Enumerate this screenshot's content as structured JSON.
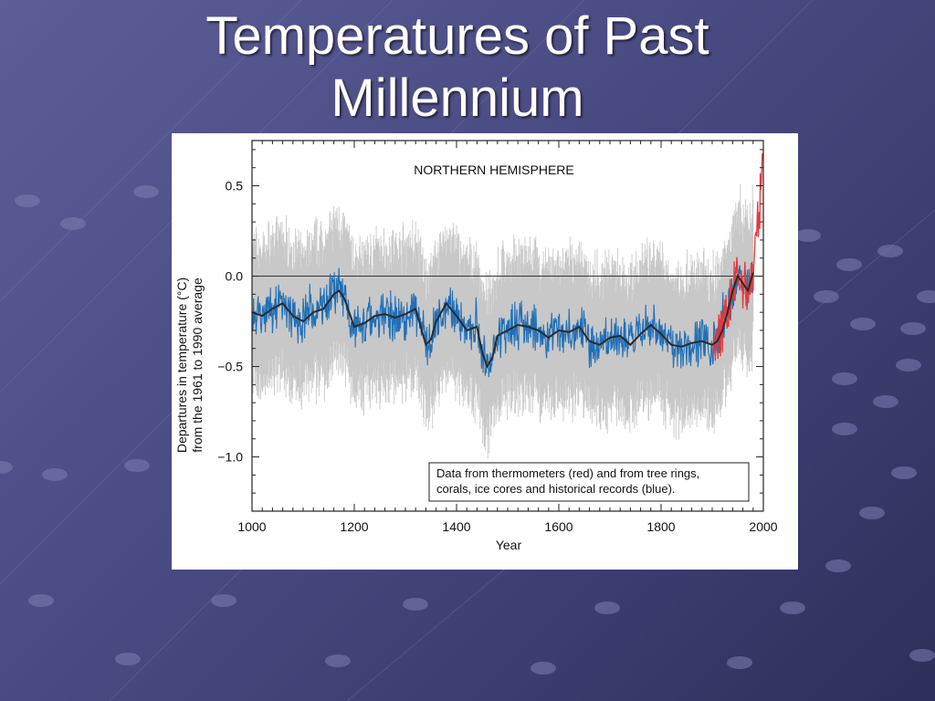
{
  "slide": {
    "title_line1": "Temperatures of Past",
    "title_line2": "Millennium"
  },
  "colors": {
    "background_top": "#5d5d97",
    "background_bottom": "#2f2f5b",
    "instrumental": "#e8383a",
    "proxy": "#1f6fb8",
    "smoothed": "#2a2a2a",
    "uncertainty": "#c8c8c8"
  },
  "chart_data": {
    "type": "line",
    "title": "NORTHERN HEMISPHERE",
    "xlabel": "Year",
    "ylabel_line1": "Departures in temperature (°C)",
    "ylabel_line2": "from the 1961 to 1990 average",
    "xlim": [
      1000,
      2000
    ],
    "ylim": [
      -1.3,
      0.75
    ],
    "x_ticks": [
      "1000",
      "1200",
      "1400",
      "1600",
      "1800",
      "2000"
    ],
    "y_ticks": [
      "0.5",
      "0.0",
      "−0.5",
      "−1.0"
    ],
    "annotation_line1": "Data from thermometers (red) and from tree rings,",
    "annotation_line2": "corals, ice cores and historical records (blue).",
    "series": [
      {
        "key": "proxy_smoothed",
        "x": [
          1000,
          1020,
          1040,
          1060,
          1080,
          1100,
          1120,
          1140,
          1160,
          1170,
          1180,
          1200,
          1220,
          1240,
          1260,
          1280,
          1300,
          1320,
          1330,
          1340,
          1350,
          1360,
          1380,
          1400,
          1420,
          1440,
          1450,
          1460,
          1470,
          1480,
          1500,
          1520,
          1540,
          1560,
          1580,
          1600,
          1620,
          1640,
          1660,
          1680,
          1700,
          1720,
          1740,
          1760,
          1780,
          1800,
          1820,
          1840,
          1860,
          1880,
          1900,
          1910,
          1920,
          1930,
          1940,
          1950,
          1960,
          1970,
          1980
        ],
        "y": [
          -0.2,
          -0.22,
          -0.18,
          -0.15,
          -0.22,
          -0.25,
          -0.2,
          -0.18,
          -0.1,
          -0.08,
          -0.12,
          -0.28,
          -0.26,
          -0.22,
          -0.21,
          -0.23,
          -0.21,
          -0.18,
          -0.28,
          -0.38,
          -0.35,
          -0.25,
          -0.15,
          -0.22,
          -0.3,
          -0.28,
          -0.42,
          -0.5,
          -0.45,
          -0.33,
          -0.3,
          -0.27,
          -0.28,
          -0.3,
          -0.34,
          -0.3,
          -0.31,
          -0.28,
          -0.36,
          -0.38,
          -0.34,
          -0.33,
          -0.38,
          -0.32,
          -0.27,
          -0.32,
          -0.38,
          -0.39,
          -0.37,
          -0.36,
          -0.38,
          -0.36,
          -0.3,
          -0.2,
          -0.08,
          0.0,
          -0.04,
          -0.08,
          0.02
        ]
      }
    ],
    "uncertainty_halfwidth": 0.3,
    "instrumental_range": [
      1902,
      1998
    ],
    "instrumental_end_value": 0.68,
    "proxy_range": [
      1000,
      1980
    ]
  }
}
